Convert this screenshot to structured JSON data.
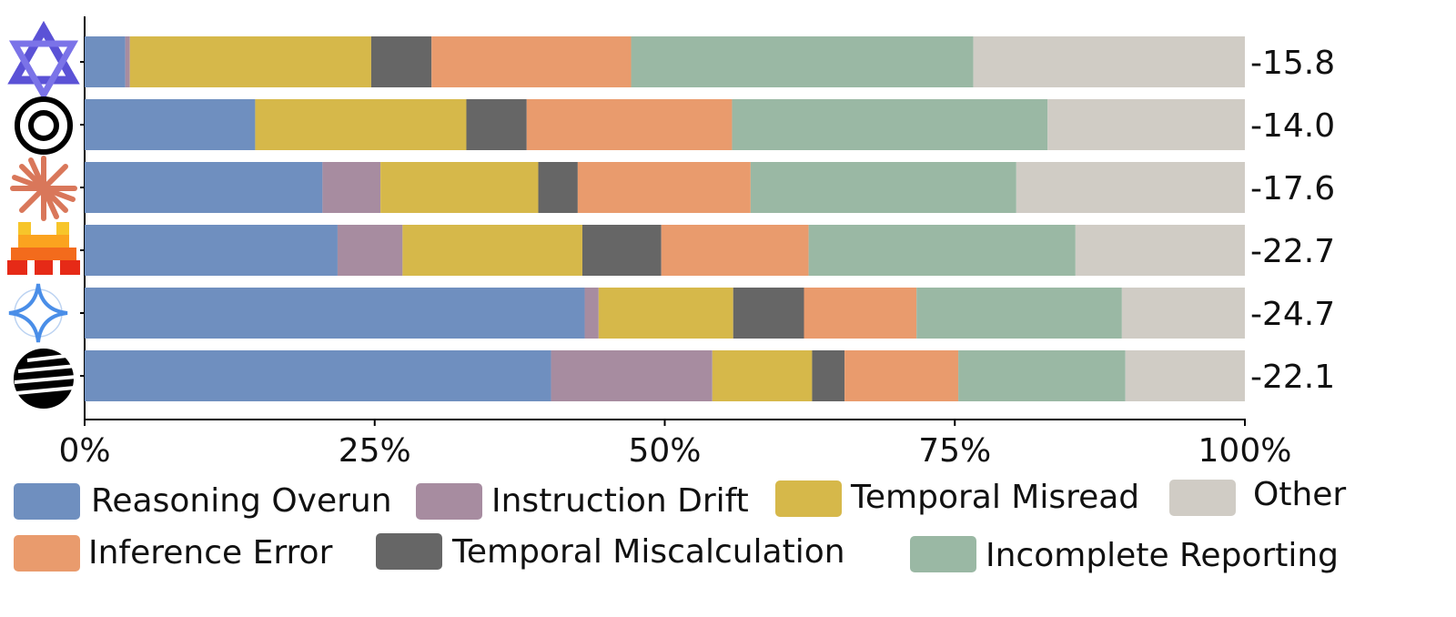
{
  "chart_data": {
    "type": "stacked-barh",
    "categories": [
      null,
      null,
      null,
      null,
      null,
      null
    ],
    "series": [
      {
        "name": "Reasoning Overun",
        "color": "#6f8fbf",
        "values": [
          3.5,
          14.7,
          20.5,
          21.8,
          43.1,
          40.2
        ]
      },
      {
        "name": "Instruction Drift",
        "color": "#a78ca0",
        "values": [
          0.4,
          0,
          5.0,
          5.6,
          1.2,
          13.9
        ]
      },
      {
        "name": "Temporal Misread",
        "color": "#d6b84a",
        "values": [
          20.8,
          18.2,
          13.6,
          15.5,
          11.6,
          8.6
        ]
      },
      {
        "name": "Temporal Miscalculation",
        "color": "#666666",
        "values": [
          5.2,
          5.2,
          3.4,
          6.8,
          6.1,
          2.8
        ]
      },
      {
        "name": "Inference Error",
        "color": "#e99b6d",
        "values": [
          17.2,
          17.7,
          14.9,
          12.7,
          9.7,
          9.8
        ]
      },
      {
        "name": "Incomplete Reporting",
        "color": "#9ab8a4",
        "values": [
          29.5,
          27.2,
          22.9,
          23.0,
          17.7,
          14.4
        ]
      },
      {
        "name": "Other",
        "color": "#d0ccc5",
        "values": [
          23.4,
          17.0,
          19.7,
          14.6,
          10.6,
          10.3
        ]
      }
    ],
    "annotations": [
      "-15.8",
      "-14.0",
      "-17.6",
      "-22.7",
      "-24.7",
      "-22.1"
    ],
    "xlim": [
      0,
      100
    ],
    "xticks": [
      {
        "value": 0,
        "label": "0%"
      },
      {
        "value": 25,
        "label": "25%"
      },
      {
        "value": 50,
        "label": "50%"
      },
      {
        "value": 75,
        "label": "75%"
      },
      {
        "value": 100,
        "label": "100%"
      }
    ]
  }
}
